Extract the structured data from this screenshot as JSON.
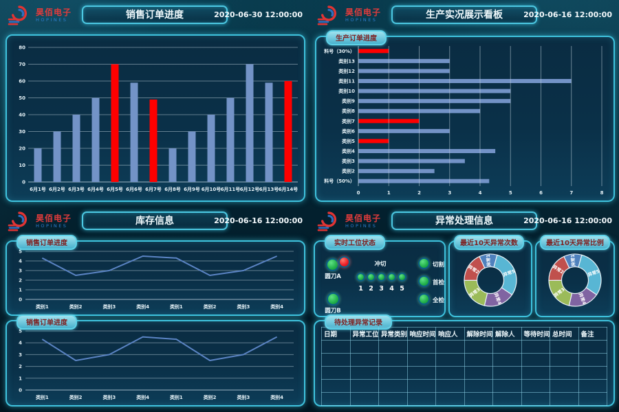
{
  "brand": {
    "name": "昊佰电子",
    "sub": "HOPINES"
  },
  "colors": {
    "accent": "#3fc3de",
    "bar_blue": "#7393c7",
    "bar_red": "#fe0000",
    "line_blue": "#5b84c4",
    "grid": "#b9cdd8",
    "status_green": "#21b04a",
    "status_red": "#ec1c24"
  },
  "quadrants": {
    "sales": {
      "title": "销售订单进度",
      "timestamp": "2020-06-30 12:00:00"
    },
    "production": {
      "title": "生产实况展示看板",
      "timestamp": "2020-06-16 12:00:00",
      "panel_label": "生产订单进度"
    },
    "inventory": {
      "title": "库存信息",
      "timestamp": "2020-06-16 12:00:00",
      "panel_label_top": "销售订单进度",
      "panel_label_bottom": "销售订单进度"
    },
    "exception": {
      "title": "异常处理信息",
      "timestamp": "2020-06-16 12:00:00",
      "panels": {
        "station": "实时工位状态",
        "donut_counts": "最近10天异常次数",
        "donut_ratio": "最近10天异常比例",
        "table": "待处理异常记录"
      }
    }
  },
  "station": {
    "left": [
      {
        "label": "圆刀A",
        "lights": [
          "green",
          "red"
        ]
      },
      {
        "label": "圆刀B",
        "lights": [
          "green"
        ]
      }
    ],
    "center": {
      "label": "冲切",
      "units": [
        "1",
        "2",
        "3",
        "4",
        "5"
      ]
    },
    "right": [
      {
        "label": "切割"
      },
      {
        "label": "首检"
      },
      {
        "label": "全检"
      }
    ]
  },
  "exception_table": {
    "headers": [
      "日期",
      "异常工位",
      "异常类别",
      "响应时间",
      "响应人",
      "解除时间",
      "解除人",
      "等待时间",
      "总时间",
      "备注"
    ],
    "empty_rows": 5
  },
  "chart_data": [
    {
      "id": "sales_daily_orders",
      "type": "bar",
      "title": "销售订单进度",
      "categories": [
        "6月1号",
        "6月2号",
        "6月3号",
        "6月4号",
        "6月5号",
        "6月6号",
        "6月7号",
        "6月8号",
        "6月9号",
        "6月10号",
        "6月11号",
        "6月12号",
        "6月13号",
        "6月14号"
      ],
      "values": [
        20,
        30,
        40,
        50,
        70,
        59,
        49,
        20,
        30,
        40,
        50,
        70,
        59,
        60
      ],
      "bar_colors": [
        "blue",
        "blue",
        "blue",
        "blue",
        "red",
        "blue",
        "red",
        "blue",
        "blue",
        "blue",
        "blue",
        "blue",
        "blue",
        "red"
      ],
      "ylim": [
        0,
        80
      ],
      "ytick_step": 10,
      "grid": true,
      "legend": false
    },
    {
      "id": "production_order_progress",
      "type": "bar",
      "orientation": "horizontal",
      "title": "生产订单进度",
      "categories": [
        "料号（30%）",
        "类别13",
        "类别12",
        "类别11",
        "类别10",
        "类别9",
        "类别8",
        "类别7",
        "类别6",
        "类别5",
        "类别4",
        "类别3",
        "类别2",
        "料号（50%）"
      ],
      "values": [
        1,
        3,
        3,
        7,
        5,
        5,
        4,
        2,
        3,
        1,
        4.5,
        3.5,
        2.5,
        4.3
      ],
      "bar_colors": [
        "red",
        "blue",
        "blue",
        "blue",
        "blue",
        "blue",
        "blue",
        "red",
        "blue",
        "red",
        "blue",
        "blue",
        "blue",
        "blue"
      ],
      "xlim": [
        0,
        8
      ],
      "xtick_step": 1,
      "grid": true,
      "legend": false
    },
    {
      "id": "inventory_line_top",
      "type": "line",
      "title": "销售订单进度",
      "categories": [
        "类别1",
        "类别2",
        "类别3",
        "类别4",
        "类别1",
        "类别2",
        "类别3",
        "类别4"
      ],
      "values": [
        4.3,
        2.5,
        3,
        4.5,
        4.3,
        2.5,
        3,
        4.5
      ],
      "ylim": [
        0,
        5
      ],
      "ytick_step": 1,
      "grid": true,
      "legend": false
    },
    {
      "id": "inventory_line_bottom",
      "type": "line",
      "title": "销售订单进度",
      "categories": [
        "类别1",
        "类别2",
        "类别3",
        "类别4",
        "类别1",
        "类别2",
        "类别3",
        "类别4"
      ],
      "values": [
        4.3,
        2.5,
        3,
        4.5,
        4.3,
        2.5,
        3,
        4.5
      ],
      "ylim": [
        0,
        5
      ],
      "ytick_step": 1,
      "grid": true,
      "legend": false
    },
    {
      "id": "donut_counts",
      "type": "pie",
      "donut": true,
      "title": "最近10天异常次数",
      "start_angle": -25,
      "slices": [
        {
          "name": "异常1",
          "value": 11,
          "color": "#4f81bd"
        },
        {
          "name": "异常5",
          "value": 30,
          "color": "#58b6d4"
        },
        {
          "name": "异常4",
          "value": 19,
          "color": "#8064a2"
        },
        {
          "name": "异常3",
          "value": 21,
          "color": "#9bbb59"
        },
        {
          "name": "异常2",
          "value": 18,
          "color": "#c0504d"
        }
      ]
    },
    {
      "id": "donut_ratio",
      "type": "pie",
      "donut": true,
      "title": "最近10天异常比例",
      "start_angle": -25,
      "slices": [
        {
          "name": "异常1",
          "value": 11,
          "color": "#4f81bd"
        },
        {
          "name": "异常5",
          "value": 30,
          "color": "#58b6d4"
        },
        {
          "name": "异常4",
          "value": 19,
          "color": "#8064a2"
        },
        {
          "name": "异常3",
          "value": 21,
          "color": "#9bbb59"
        },
        {
          "name": "异常2",
          "value": 18,
          "color": "#c0504d"
        }
      ]
    }
  ]
}
